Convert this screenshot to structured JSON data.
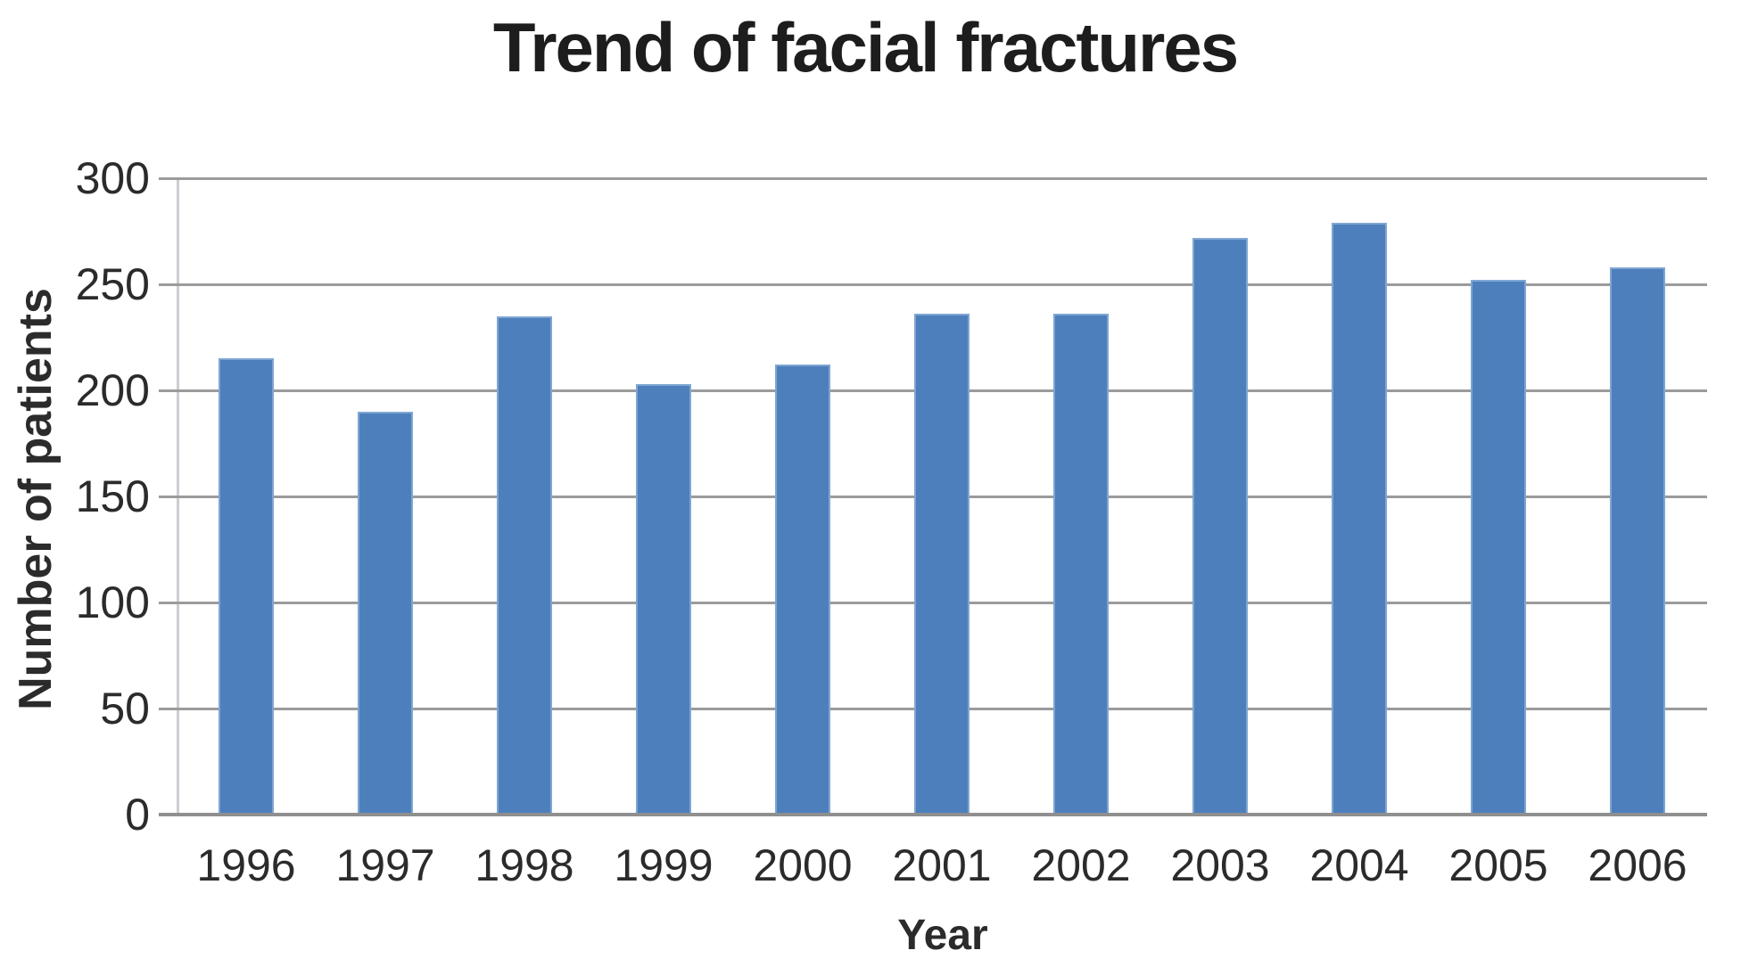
{
  "chart_data": {
    "type": "bar",
    "title": "Trend of facial fractures",
    "xlabel": "Year",
    "ylabel": "Number of patients",
    "categories": [
      "1996",
      "1997",
      "1998",
      "1999",
      "2000",
      "2001",
      "2002",
      "2003",
      "2004",
      "2005",
      "2006"
    ],
    "values": [
      215,
      190,
      235,
      203,
      212,
      236,
      236,
      272,
      279,
      252,
      258
    ],
    "ylim": [
      0,
      300
    ],
    "yticks": [
      0,
      50,
      100,
      150,
      200,
      250,
      300
    ],
    "grid": true,
    "legend": false,
    "bar_color": "#4d7fbc",
    "bar_edge_color": "#7fa6d2",
    "gridline_color": "#9b9b9b",
    "x_axis_color": "#8f8f8f",
    "y_axis_color": "#caced3",
    "text_color": "#2b2b2b",
    "title_color": "#1d1d1d",
    "background": "#ffffff"
  }
}
